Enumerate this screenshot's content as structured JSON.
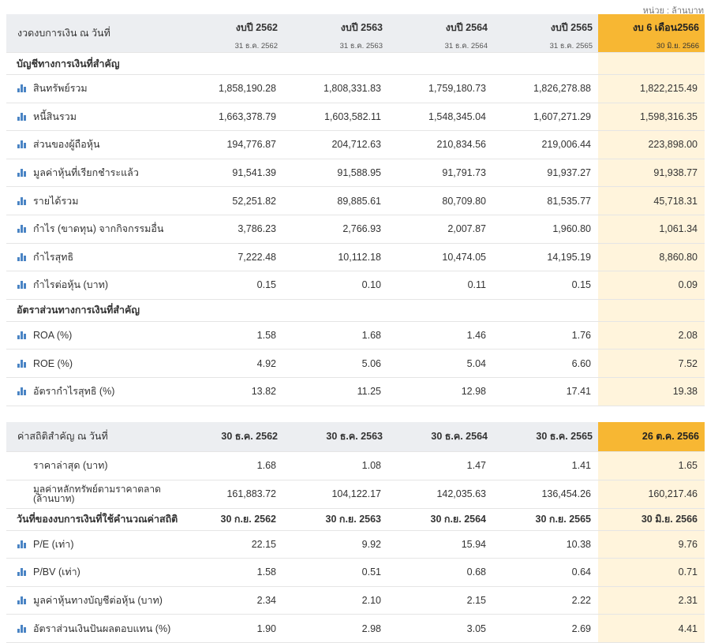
{
  "unit_note": "หน่วย : ล้านบาท",
  "financials": {
    "label_header": "งวดงบการเงิน ณ วันที่",
    "columns": [
      {
        "year": "งบปี 2562",
        "date": "31 ธ.ค. 2562"
      },
      {
        "year": "งบปี 2563",
        "date": "31 ธ.ค. 2563"
      },
      {
        "year": "งบปี 2564",
        "date": "31 ธ.ค. 2564"
      },
      {
        "year": "งบปี 2565",
        "date": "31 ธ.ค. 2565"
      },
      {
        "year": "งบ 6 เดือน2566",
        "date": "30 มิ.ย. 2566"
      }
    ],
    "section1_title": "บัญชีทางการเงินที่สำคัญ",
    "section1_rows": [
      {
        "label": "สินทรัพย์รวม",
        "values": [
          "1,858,190.28",
          "1,808,331.83",
          "1,759,180.73",
          "1,826,278.88",
          "1,822,215.49"
        ]
      },
      {
        "label": "หนี้สินรวม",
        "values": [
          "1,663,378.79",
          "1,603,582.11",
          "1,548,345.04",
          "1,607,271.29",
          "1,598,316.35"
        ]
      },
      {
        "label": "ส่วนของผู้ถือหุ้น",
        "values": [
          "194,776.87",
          "204,712.63",
          "210,834.56",
          "219,006.44",
          "223,898.00"
        ]
      },
      {
        "label": "มูลค่าหุ้นที่เรียกชำระแล้ว",
        "values": [
          "91,541.39",
          "91,588.95",
          "91,791.73",
          "91,937.27",
          "91,938.77"
        ]
      },
      {
        "label": "รายได้รวม",
        "values": [
          "52,251.82",
          "89,885.61",
          "80,709.80",
          "81,535.77",
          "45,718.31"
        ]
      },
      {
        "label": "กำไร (ขาดทุน) จากกิจกรรมอื่น",
        "values": [
          "3,786.23",
          "2,766.93",
          "2,007.87",
          "1,960.80",
          "1,061.34"
        ]
      },
      {
        "label": "กำไรสุทธิ",
        "values": [
          "7,222.48",
          "10,112.18",
          "10,474.05",
          "14,195.19",
          "8,860.80"
        ]
      },
      {
        "label": "กำไรต่อหุ้น (บาท)",
        "values": [
          "0.15",
          "0.10",
          "0.11",
          "0.15",
          "0.09"
        ]
      }
    ],
    "section2_title": "อัตราส่วนทางการเงินที่สำคัญ",
    "section2_rows": [
      {
        "label": "ROA (%)",
        "values": [
          "1.58",
          "1.68",
          "1.46",
          "1.76",
          "2.08"
        ]
      },
      {
        "label": "ROE (%)",
        "values": [
          "4.92",
          "5.06",
          "5.04",
          "6.60",
          "7.52"
        ]
      },
      {
        "label": "อัตรากำไรสุทธิ (%)",
        "values": [
          "13.82",
          "11.25",
          "12.98",
          "17.41",
          "19.38"
        ]
      }
    ]
  },
  "statistics": {
    "label_header": "ค่าสถิติสำคัญ ณ วันที่",
    "columns": [
      "30 ธ.ค. 2562",
      "30 ธ.ค. 2563",
      "30 ธ.ค. 2564",
      "30 ธ.ค. 2565",
      "26 ต.ค. 2566"
    ],
    "plain_rows": [
      {
        "label": "ราคาล่าสุด (บาท)",
        "values": [
          "1.68",
          "1.08",
          "1.47",
          "1.41",
          "1.65"
        ]
      },
      {
        "label": "มูลค่าหลักทรัพย์ตามราคาตลาด (ล้านบาท)",
        "values": [
          "161,883.72",
          "104,122.17",
          "142,035.63",
          "136,454.26",
          "160,217.46"
        ]
      }
    ],
    "subhead": {
      "label": "วันที่ของงบการเงินที่ใช้คำนวณค่าสถิติ",
      "values": [
        "30 ก.ย. 2562",
        "30 ก.ย. 2563",
        "30 ก.ย. 2564",
        "30 ก.ย. 2565",
        "30 มิ.ย. 2566"
      ]
    },
    "chart_rows": [
      {
        "label": "P/E (เท่า)",
        "values": [
          "22.15",
          "9.92",
          "15.94",
          "10.38",
          "9.76"
        ]
      },
      {
        "label": "P/BV (เท่า)",
        "values": [
          "1.58",
          "0.51",
          "0.68",
          "0.64",
          "0.71"
        ]
      },
      {
        "label": "มูลค่าหุ้นทางบัญชีต่อหุ้น (บาท)",
        "values": [
          "2.34",
          "2.10",
          "2.15",
          "2.22",
          "2.31"
        ]
      },
      {
        "label": "อัตราส่วนเงินปันผลตอบแทน (%)",
        "values": [
          "1.90",
          "2.98",
          "3.05",
          "2.69",
          "4.41"
        ]
      }
    ]
  },
  "icons": {
    "row_chart": "bar-chart-icon"
  },
  "colors": {
    "highlight": "#f7b733",
    "highlight_light": "#fff4dc",
    "header_bg": "#eceef1",
    "icon": "#4a84c4"
  }
}
